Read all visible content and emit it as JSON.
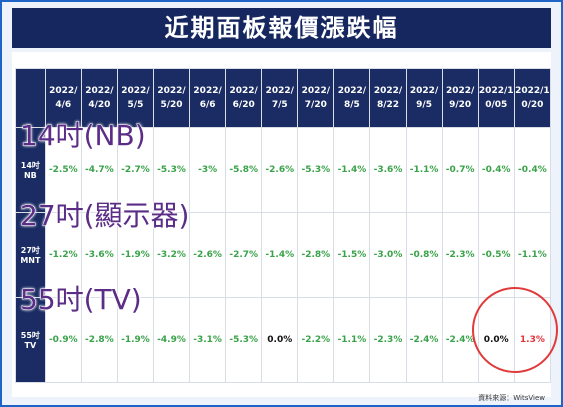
{
  "title": "近期面板報價漲跌幅",
  "table": {
    "columns": [
      "2022/4/6",
      "2022/4/20",
      "2022/5/5",
      "2022/5/20",
      "2022/6/6",
      "2022/6/20",
      "2022/7/5",
      "2022/7/20",
      "2022/8/5",
      "2022/8/22",
      "2022/9/5",
      "2022/9/20",
      "2022/10/05",
      "2022/10/20"
    ],
    "rows": [
      {
        "label": "14吋 NB",
        "cells": [
          "-2.5%",
          "-4.7%",
          "-2.7%",
          "-5.3%",
          "-3%",
          "-5.8%",
          "-2.6%",
          "-5.3%",
          "-1.4%",
          "-3.6%",
          "-1.1%",
          "-0.7%",
          "-0.4%",
          "-0.4%"
        ]
      },
      {
        "label": "27吋 MNT",
        "cells": [
          "-1.2%",
          "-3.6%",
          "-1.9%",
          "-3.2%",
          "-2.6%",
          "-2.7%",
          "-1.4%",
          "-2.8%",
          "-1.5%",
          "-3.0%",
          "-0.8%",
          "-2.3%",
          "-0.5%",
          "-1.1%"
        ]
      },
      {
        "label": "55吋 TV",
        "cells": [
          "-0.9%",
          "-2.8%",
          "-1.9%",
          "-4.9%",
          "-3.1%",
          "-5.3%",
          "0.0%",
          "-2.2%",
          "-1.1%",
          "-2.3%",
          "-2.4%",
          "-2.4%",
          "0.0%",
          "1.3%"
        ]
      }
    ]
  },
  "overlays": [
    "14吋(NB)",
    "27吋(顯示器)",
    "55吋(TV)"
  ],
  "source": "資料來源：WitsView"
}
